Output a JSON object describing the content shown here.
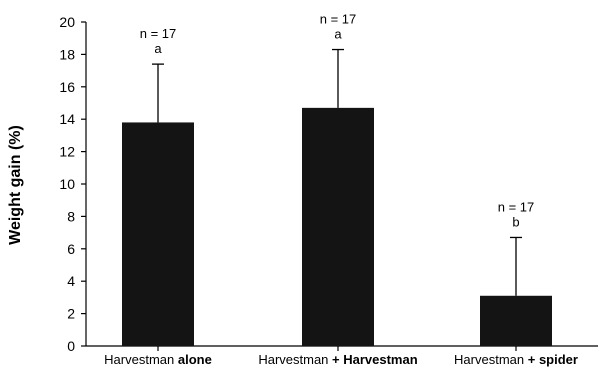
{
  "chart_data": {
    "type": "bar",
    "categories": [
      {
        "prefix": "Harvestman",
        "emph": "alone"
      },
      {
        "prefix": "Harvestman",
        "emph": "+ Harvestman"
      },
      {
        "prefix": "Harvestman",
        "emph": "+ spider"
      }
    ],
    "values": [
      13.8,
      14.7,
      3.1
    ],
    "error_upper": [
      17.4,
      18.3,
      6.7
    ],
    "annotations": [
      {
        "n": "n = 17",
        "letter": "a"
      },
      {
        "n": "n = 17",
        "letter": "a"
      },
      {
        "n": "n = 17",
        "letter": "b"
      }
    ],
    "title": "",
    "xlabel": "",
    "ylabel": "Weight gain (%)",
    "ylim": [
      0,
      20
    ],
    "yticks": [
      0,
      2,
      4,
      6,
      8,
      10,
      12,
      14,
      16,
      18,
      20
    ],
    "bar_color": "#141414",
    "grid": false,
    "legend": "none"
  }
}
